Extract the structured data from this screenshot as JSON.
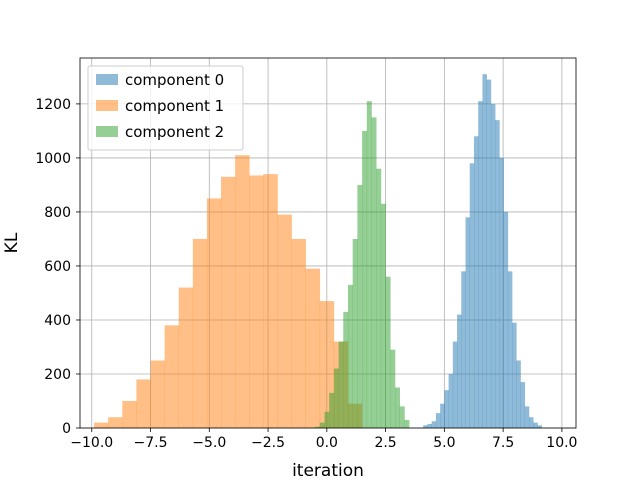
{
  "chart_data": {
    "type": "bar",
    "subtype": "histogram",
    "title": "",
    "xlabel": "iteration",
    "ylabel": "KL",
    "xlim": [
      -10.5,
      10.6
    ],
    "ylim": [
      0,
      1370
    ],
    "x_ticks": [
      -10.0,
      -7.5,
      -5.0,
      -2.5,
      0.0,
      2.5,
      5.0,
      7.5,
      10.0
    ],
    "x_tick_labels": [
      "−10.0",
      "−7.5",
      "−5.0",
      "−2.5",
      "0.0",
      "2.5",
      "5.0",
      "7.5",
      "10.0"
    ],
    "y_ticks": [
      0,
      200,
      400,
      600,
      800,
      1000,
      1200
    ],
    "y_tick_labels": [
      "0",
      "200",
      "400",
      "600",
      "800",
      "1000",
      "1200"
    ],
    "grid": true,
    "legend_position": "top-left",
    "series": [
      {
        "name": "component 0",
        "color": "#1f77b4",
        "alpha": 0.5,
        "bin_start": 4.1,
        "bin_width": 0.18,
        "counts": [
          10,
          15,
          25,
          55,
          90,
          140,
          200,
          320,
          420,
          580,
          780,
          980,
          1080,
          1210,
          1310,
          1290,
          1200,
          1140,
          1000,
          800,
          580,
          390,
          250,
          170,
          80,
          40,
          20,
          10
        ]
      },
      {
        "name": "component 1",
        "color": "#ff7f0e",
        "alpha": 0.5,
        "bin_start": -9.9,
        "bin_width": 0.6,
        "counts": [
          20,
          40,
          100,
          180,
          250,
          380,
          520,
          700,
          850,
          930,
          1010,
          935,
          940,
          790,
          700,
          590,
          470,
          320,
          90
        ]
      },
      {
        "name": "component 2",
        "color": "#2ca02c",
        "alpha": 0.5,
        "bin_start": -0.5,
        "bin_width": 0.2,
        "counts": [
          5,
          20,
          60,
          130,
          220,
          320,
          430,
          530,
          700,
          900,
          1100,
          1210,
          1150,
          960,
          830,
          560,
          290,
          150,
          80,
          30
        ]
      }
    ]
  }
}
